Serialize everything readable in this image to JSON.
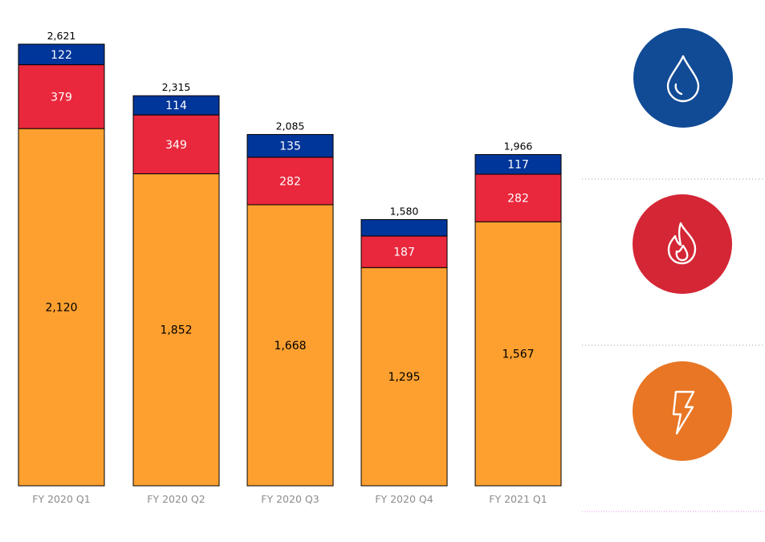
{
  "chart_data": {
    "type": "bar",
    "stacked": true,
    "categories": [
      "FY 2020 Q1",
      "FY 2020 Q2",
      "FY 2020 Q3",
      "FY 2020 Q4",
      "FY 2021 Q1"
    ],
    "series": [
      {
        "values": [
          2120,
          1852,
          1668,
          1295,
          1567
        ],
        "color": "#FDA030",
        "label_color": "#000000",
        "labels": [
          "2,120",
          "1,852",
          "1,668",
          "1,295",
          "1,567"
        ]
      },
      {
        "values": [
          379,
          349,
          282,
          187,
          282
        ],
        "color": "#E9283D",
        "label_color": "#ffffff",
        "labels": [
          "379",
          "349",
          "282",
          "187",
          "282"
        ]
      },
      {
        "values": [
          122,
          114,
          135,
          98,
          117
        ],
        "color": "#003599",
        "label_color": "#ffffff",
        "labels": [
          "122",
          "114",
          "135",
          "",
          "117"
        ]
      }
    ],
    "totals": [
      2621,
      2315,
      2085,
      1580,
      1966
    ],
    "total_labels": [
      "2,621",
      "2,315",
      "2,085",
      "1,580",
      "1,966"
    ],
    "ylim": [
      0,
      2621
    ],
    "grid": false,
    "legend": {
      "items": [
        {
          "icon": "water-drop-icon",
          "color": "#114A95"
        },
        {
          "icon": "flame-icon",
          "color": "#D42635"
        },
        {
          "icon": "lightning-bolt-icon",
          "color": "#E87624"
        }
      ]
    }
  }
}
